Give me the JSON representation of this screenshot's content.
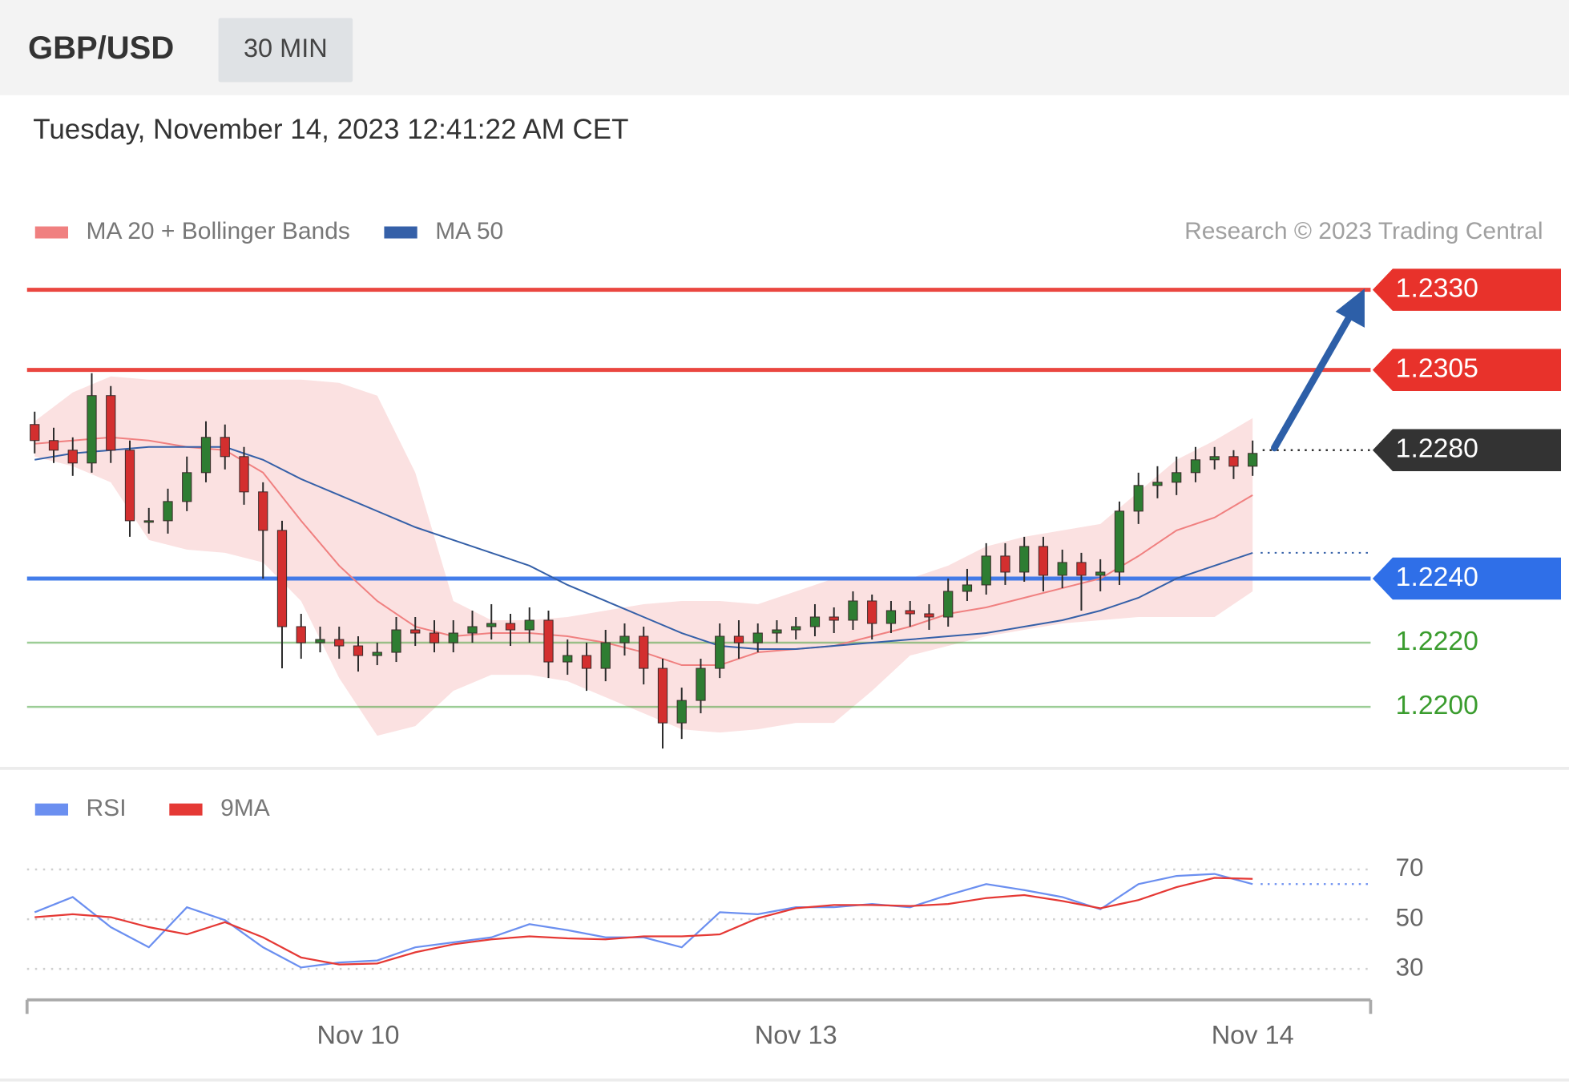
{
  "header": {
    "symbol": "GBP/USD",
    "timeframe": "30 MIN",
    "timestamp": "Tuesday, November 14, 2023 12:41:22 AM CET"
  },
  "chart_data": [
    {
      "type": "candlestick",
      "credit": "Research © 2023 Trading Central",
      "xlim": [
        -0.4,
        70.2
      ],
      "ylim": [
        1.2183,
        1.2336
      ],
      "up_color": "#2e7d32",
      "down_color": "#d32f2f",
      "x": [
        0,
        1,
        2,
        3,
        4,
        5,
        6,
        7,
        8,
        9,
        10,
        11,
        12,
        13,
        14,
        15,
        16,
        17,
        18,
        19,
        20,
        21,
        22,
        23,
        24,
        25,
        26,
        27,
        28,
        29,
        30,
        31,
        32,
        33,
        34,
        35,
        36,
        37,
        38,
        39,
        40,
        41,
        42,
        43,
        44,
        45,
        46,
        47,
        48,
        49,
        50,
        51,
        52,
        53,
        54,
        55,
        56,
        57,
        58,
        59,
        60,
        61,
        62,
        63,
        64
      ],
      "open": [
        1.2288,
        1.2283,
        1.228,
        1.2276,
        1.2297,
        1.228,
        1.2258,
        1.2258,
        1.2264,
        1.2273,
        1.2284,
        1.2278,
        1.2267,
        1.2255,
        1.2225,
        1.222,
        1.2221,
        1.2219,
        1.2216,
        1.2217,
        1.2224,
        1.2223,
        1.222,
        1.2223,
        1.2225,
        1.2226,
        1.2224,
        1.2227,
        1.2214,
        1.2216,
        1.2212,
        1.222,
        1.2222,
        1.2212,
        1.2195,
        1.2202,
        1.2212,
        1.2222,
        1.222,
        1.2223,
        1.2224,
        1.2225,
        1.2228,
        1.2227,
        1.2233,
        1.2226,
        1.223,
        1.2229,
        1.2228,
        1.2236,
        1.2238,
        1.2247,
        1.2242,
        1.225,
        1.2241,
        1.2245,
        1.2241,
        1.2242,
        1.2261,
        1.2269,
        1.227,
        1.2273,
        1.2277,
        1.2278,
        1.2275
      ],
      "high": [
        1.2292,
        1.2287,
        1.2284,
        1.2304,
        1.23,
        1.2283,
        1.2262,
        1.2268,
        1.2278,
        1.2289,
        1.2288,
        1.2281,
        1.227,
        1.2258,
        1.2229,
        1.2225,
        1.2225,
        1.2222,
        1.222,
        1.2228,
        1.2228,
        1.2227,
        1.2227,
        1.223,
        1.2232,
        1.2229,
        1.2231,
        1.223,
        1.2221,
        1.222,
        1.2224,
        1.2226,
        1.2225,
        1.2215,
        1.2206,
        1.2215,
        1.2226,
        1.2227,
        1.2226,
        1.2227,
        1.2228,
        1.2232,
        1.2231,
        1.2236,
        1.2235,
        1.2233,
        1.2233,
        1.2232,
        1.224,
        1.2243,
        1.2251,
        1.2251,
        1.2253,
        1.2253,
        1.2249,
        1.2248,
        1.2246,
        1.2264,
        1.2273,
        1.2275,
        1.2278,
        1.2281,
        1.2281,
        1.228,
        1.2283
      ],
      "low": [
        1.2279,
        1.2276,
        1.2272,
        1.2273,
        1.2276,
        1.2253,
        1.2254,
        1.2254,
        1.2261,
        1.227,
        1.2274,
        1.2263,
        1.224,
        1.2212,
        1.2215,
        1.2217,
        1.2215,
        1.2211,
        1.2213,
        1.2214,
        1.2219,
        1.2217,
        1.2217,
        1.222,
        1.2221,
        1.2219,
        1.222,
        1.2209,
        1.221,
        1.2205,
        1.2208,
        1.2216,
        1.2207,
        1.2187,
        1.219,
        1.2198,
        1.2209,
        1.2215,
        1.2217,
        1.222,
        1.2221,
        1.2222,
        1.2223,
        1.2224,
        1.2221,
        1.2223,
        1.2225,
        1.2224,
        1.2225,
        1.2233,
        1.2235,
        1.2238,
        1.2239,
        1.2236,
        1.2237,
        1.223,
        1.2236,
        1.2238,
        1.2257,
        1.2265,
        1.2266,
        1.227,
        1.2274,
        1.2271,
        1.2272
      ],
      "close": [
        1.2283,
        1.228,
        1.2276,
        1.2297,
        1.228,
        1.2258,
        1.2258,
        1.2264,
        1.2273,
        1.2284,
        1.2278,
        1.2267,
        1.2255,
        1.2225,
        1.222,
        1.2221,
        1.2219,
        1.2216,
        1.2217,
        1.2224,
        1.2223,
        1.222,
        1.2223,
        1.2225,
        1.2226,
        1.2224,
        1.2227,
        1.2214,
        1.2216,
        1.2212,
        1.222,
        1.2222,
        1.2212,
        1.2195,
        1.2202,
        1.2212,
        1.2222,
        1.222,
        1.2223,
        1.2224,
        1.2225,
        1.2228,
        1.2227,
        1.2233,
        1.2226,
        1.223,
        1.2229,
        1.2228,
        1.2236,
        1.2238,
        1.2247,
        1.2242,
        1.225,
        1.2241,
        1.2245,
        1.2241,
        1.2242,
        1.2261,
        1.2269,
        1.227,
        1.2273,
        1.2277,
        1.2278,
        1.2275,
        1.2279
      ],
      "indicators": {
        "x": [
          0,
          2,
          4,
          6,
          8,
          10,
          12,
          14,
          16,
          18,
          20,
          22,
          24,
          26,
          28,
          30,
          32,
          34,
          36,
          38,
          40,
          42,
          44,
          46,
          48,
          50,
          52,
          54,
          56,
          58,
          60,
          62,
          64
        ],
        "series": [
          {
            "name": "MA 20 + Bollinger Bands",
            "color": "#f08080",
            "band_color": "#fbe1e1",
            "values": [
              1.2282,
              1.2283,
              1.2284,
              1.2283,
              1.2281,
              1.228,
              1.2273,
              1.2258,
              1.2244,
              1.2233,
              1.2225,
              1.2222,
              1.2223,
              1.2223,
              1.2222,
              1.222,
              1.2217,
              1.2213,
              1.2213,
              1.2217,
              1.2218,
              1.2219,
              1.2222,
              1.2225,
              1.2229,
              1.2231,
              1.2234,
              1.2237,
              1.224,
              1.2247,
              1.2255,
              1.2259,
              1.2266
            ],
            "upper": [
              1.2289,
              1.2298,
              1.2303,
              1.2302,
              1.2302,
              1.2302,
              1.2302,
              1.2302,
              1.2301,
              1.2297,
              1.2273,
              1.2233,
              1.2227,
              1.2227,
              1.2228,
              1.223,
              1.2232,
              1.2233,
              1.2233,
              1.2232,
              1.2236,
              1.224,
              1.224,
              1.224,
              1.2244,
              1.225,
              1.2253,
              1.2255,
              1.2257,
              1.2267,
              1.2277,
              1.2283,
              1.229
            ],
            "lower": [
              1.2278,
              1.2275,
              1.227,
              1.2252,
              1.2249,
              1.2248,
              1.2245,
              1.2233,
              1.2209,
              1.2191,
              1.2194,
              1.2205,
              1.221,
              1.221,
              1.2208,
              1.2203,
              1.2198,
              1.2193,
              1.2192,
              1.2193,
              1.2195,
              1.2195,
              1.2205,
              1.2216,
              1.2219,
              1.2222,
              1.2224,
              1.2226,
              1.2227,
              1.2228,
              1.2228,
              1.2228,
              1.2236
            ]
          },
          {
            "name": "MA 50",
            "color": "#3560a8",
            "values": [
              1.2277,
              1.2279,
              1.228,
              1.2281,
              1.2281,
              1.2281,
              1.2277,
              1.2271,
              1.2266,
              1.2261,
              1.2256,
              1.2252,
              1.2248,
              1.2244,
              1.2238,
              1.2233,
              1.2228,
              1.2223,
              1.2219,
              1.2218,
              1.2218,
              1.2219,
              1.222,
              1.2221,
              1.2222,
              1.2223,
              1.2225,
              1.2227,
              1.223,
              1.2234,
              1.224,
              1.2244,
              1.2248
            ]
          }
        ]
      },
      "levels": [
        {
          "value": 1.233,
          "label": "1.2330",
          "color": "#e8322b",
          "style": "tag"
        },
        {
          "value": 1.2305,
          "label": "1.2305",
          "color": "#e8322b",
          "style": "tag"
        },
        {
          "value": 1.228,
          "label": "1.2280",
          "color": "#333333",
          "style": "current"
        },
        {
          "value": 1.224,
          "label": "1.2240",
          "color": "#2f6fe8",
          "style": "tag"
        },
        {
          "value": 1.222,
          "label": "1.2220",
          "color": "#3a9c2e",
          "style": "text"
        },
        {
          "value": 1.22,
          "label": "1.2200",
          "color": "#3a9c2e",
          "style": "text"
        }
      ]
    },
    {
      "type": "line",
      "xlim": [
        -0.4,
        70.2
      ],
      "ylim": [
        20,
        80
      ],
      "yticks": [
        30,
        50,
        70
      ],
      "grid": true,
      "x": [
        0,
        2,
        4,
        6,
        8,
        10,
        12,
        14,
        16,
        18,
        20,
        22,
        24,
        26,
        28,
        30,
        32,
        34,
        36,
        38,
        40,
        42,
        44,
        46,
        48,
        50,
        52,
        54,
        56,
        58,
        60,
        62,
        64
      ],
      "xticks": [
        {
          "value": 17,
          "label": "Nov 10"
        },
        {
          "value": 40,
          "label": "Nov 13"
        },
        {
          "value": 64,
          "label": "Nov 14"
        }
      ],
      "series": [
        {
          "name": "RSI",
          "color": "#6b8ff0",
          "values": [
            52.8,
            58.9,
            46.8,
            38.7,
            54.8,
            49.6,
            38.7,
            30.6,
            32.6,
            33.4,
            38.7,
            40.7,
            42.7,
            48,
            45.6,
            42.7,
            42.7,
            38.7,
            52.8,
            52.0,
            54.8,
            54.8,
            56.1,
            54.8,
            59.7,
            64.1,
            61.7,
            58.9,
            54.0,
            64.1,
            67.4,
            68.2,
            64.1
          ]
        },
        {
          "name": "9MA",
          "color": "#e53935",
          "values": [
            50.8,
            52.0,
            50.8,
            46.8,
            43.9,
            48.8,
            42.7,
            34.6,
            31.8,
            32.2,
            36.7,
            39.9,
            41.9,
            43.1,
            42.3,
            41.9,
            43.1,
            43.1,
            43.9,
            50.4,
            54.4,
            55.7,
            55.7,
            55.3,
            56.1,
            58.5,
            59.7,
            57.3,
            54.4,
            57.7,
            62.9,
            66.6,
            66.2
          ]
        }
      ]
    }
  ]
}
